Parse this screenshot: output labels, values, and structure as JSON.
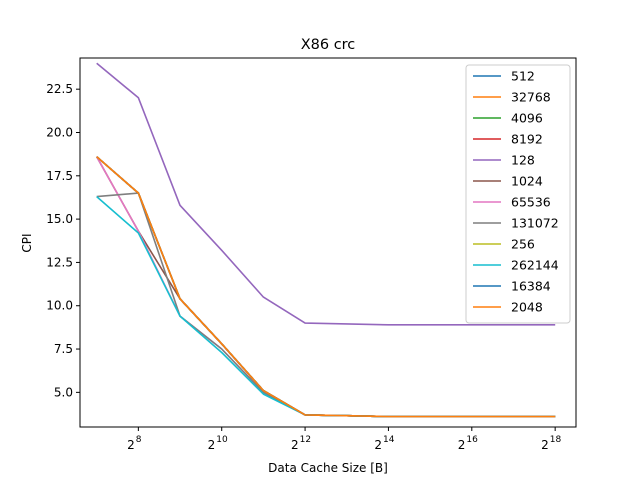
{
  "chart_data": {
    "type": "line",
    "title": "X86 crc",
    "xlabel": "Data Cache Size [B]",
    "ylabel": "CPI",
    "xscale": "log2",
    "xlim_exp": [
      6.6,
      18.5
    ],
    "ylim": [
      3.0,
      24.3
    ],
    "x_ticks": [
      {
        "exp": 8
      },
      {
        "exp": 10
      },
      {
        "exp": 12
      },
      {
        "exp": 14
      },
      {
        "exp": 16
      },
      {
        "exp": 18
      }
    ],
    "y_ticks": [
      "5.0",
      "7.5",
      "10.0",
      "12.5",
      "15.0",
      "17.5",
      "20.0",
      "22.5"
    ],
    "y_tick_values": [
      5.0,
      7.5,
      10.0,
      12.5,
      15.0,
      17.5,
      20.0,
      22.5
    ],
    "tick_base": "2",
    "legend_position": "upper right",
    "x_exp": [
      7,
      8,
      9,
      10,
      11,
      12,
      13,
      14,
      15,
      16,
      17,
      18
    ],
    "series": [
      {
        "name": "512",
        "color": "#1f77b4",
        "values": [
          18.6,
          16.5,
          10.4,
          7.8,
          5.1,
          3.7,
          3.65,
          3.6,
          3.6,
          3.6,
          3.6,
          3.6
        ]
      },
      {
        "name": "32768",
        "color": "#ff7f0e",
        "values": [
          18.6,
          16.5,
          10.4,
          7.8,
          5.1,
          3.7,
          3.65,
          3.6,
          3.6,
          3.6,
          3.6,
          3.6
        ]
      },
      {
        "name": "4096",
        "color": "#2ca02c",
        "values": [
          18.6,
          16.5,
          10.4,
          7.8,
          5.1,
          3.7,
          3.65,
          3.6,
          3.6,
          3.6,
          3.6,
          3.6
        ]
      },
      {
        "name": "8192",
        "color": "#d62728",
        "values": [
          18.6,
          16.5,
          10.4,
          7.8,
          5.1,
          3.7,
          3.65,
          3.6,
          3.6,
          3.6,
          3.6,
          3.6
        ]
      },
      {
        "name": "128",
        "color": "#9467bd",
        "values": [
          24.0,
          22.0,
          15.8,
          13.2,
          10.5,
          9.0,
          8.95,
          8.9,
          8.9,
          8.9,
          8.9,
          8.9
        ]
      },
      {
        "name": "1024",
        "color": "#8c564b",
        "values": [
          18.6,
          14.3,
          10.4,
          7.8,
          5.1,
          3.7,
          3.65,
          3.6,
          3.6,
          3.6,
          3.6,
          3.6
        ]
      },
      {
        "name": "65536",
        "color": "#e377c2",
        "values": [
          18.6,
          14.3,
          9.4,
          7.5,
          5.0,
          3.7,
          3.65,
          3.6,
          3.6,
          3.6,
          3.6,
          3.6
        ]
      },
      {
        "name": "131072",
        "color": "#7f7f7f",
        "values": [
          16.3,
          16.5,
          9.4,
          7.5,
          5.0,
          3.7,
          3.65,
          3.6,
          3.6,
          3.6,
          3.6,
          3.6
        ]
      },
      {
        "name": "256",
        "color": "#bcbd22",
        "values": [
          18.6,
          16.5,
          10.4,
          7.8,
          5.1,
          3.7,
          3.65,
          3.6,
          3.6,
          3.6,
          3.6,
          3.6
        ]
      },
      {
        "name": "262144",
        "color": "#17becf",
        "values": [
          16.3,
          14.2,
          9.4,
          7.3,
          4.9,
          3.7,
          3.65,
          3.6,
          3.6,
          3.6,
          3.6,
          3.6
        ]
      },
      {
        "name": "16384",
        "color": "#1f77b4",
        "values": [
          18.6,
          16.5,
          10.4,
          7.8,
          5.1,
          3.7,
          3.65,
          3.6,
          3.6,
          3.6,
          3.6,
          3.6
        ]
      },
      {
        "name": "2048",
        "color": "#ff7f0e",
        "values": [
          18.6,
          16.5,
          10.4,
          7.8,
          5.1,
          3.7,
          3.65,
          3.6,
          3.6,
          3.6,
          3.6,
          3.6
        ]
      }
    ]
  }
}
